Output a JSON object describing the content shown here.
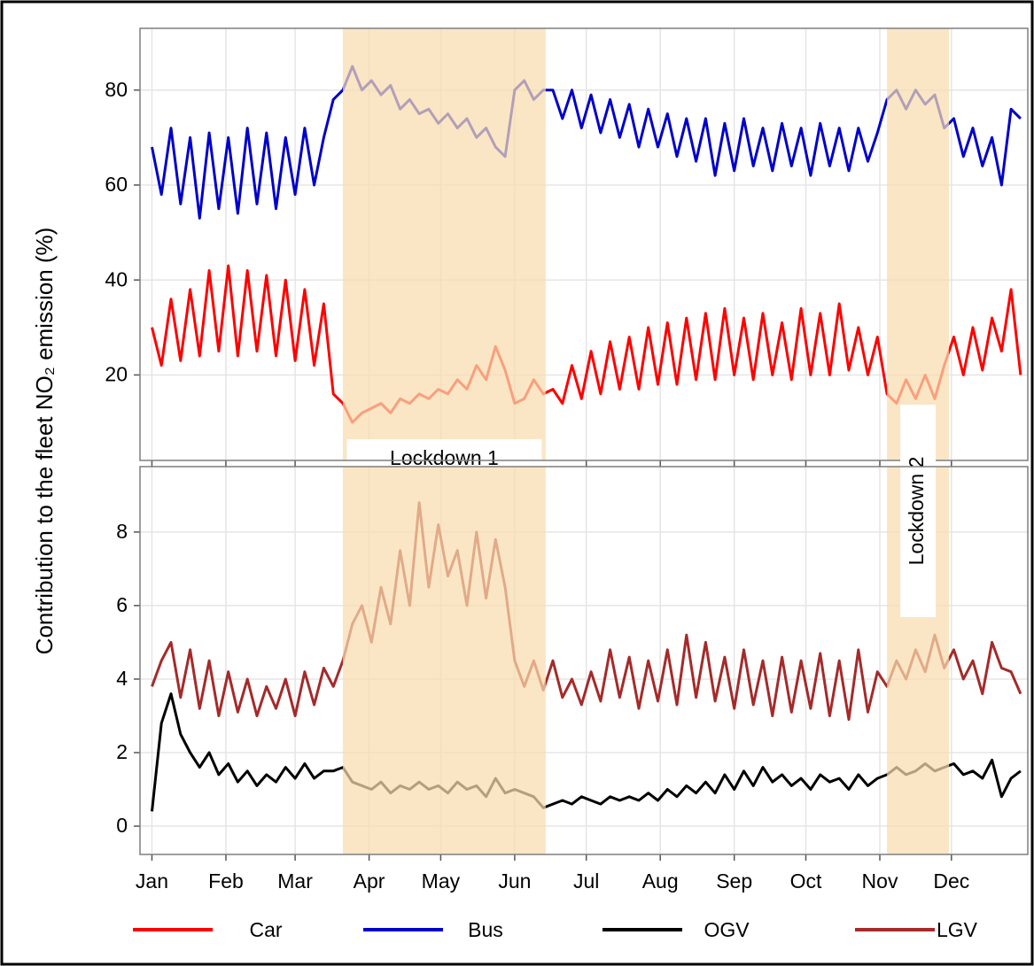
{
  "chart_data": [
    {
      "type": "line",
      "ylabel": "Contribution to the fleet NO₂ emission (%)",
      "x": [
        1,
        5,
        9,
        13,
        17,
        21,
        25,
        29,
        33,
        37,
        41,
        45,
        49,
        53,
        57,
        61,
        65,
        69,
        73,
        77,
        81,
        85,
        89,
        93,
        97,
        101,
        105,
        109,
        113,
        117,
        121,
        125,
        129,
        133,
        137,
        141,
        145,
        149,
        153,
        157,
        161,
        165,
        169,
        173,
        177,
        181,
        185,
        189,
        193,
        197,
        201,
        205,
        209,
        213,
        217,
        221,
        225,
        229,
        233,
        237,
        241,
        245,
        249,
        253,
        257,
        261,
        265,
        269,
        273,
        277,
        281,
        285,
        289,
        293,
        297,
        301,
        305,
        309,
        313,
        317,
        321,
        325,
        329,
        333,
        337,
        341,
        345,
        349,
        353,
        357,
        361,
        365
      ],
      "xlim": [
        -4,
        368
      ],
      "ylim": [
        2,
        93
      ],
      "yticks": [
        20,
        40,
        60,
        80
      ],
      "grid": true,
      "shaded": [
        {
          "x": [
            81,
            166
          ],
          "label": "Lockdown 1"
        },
        {
          "x": [
            309,
            335
          ]
        }
      ],
      "series": [
        {
          "name": "Car",
          "color": "#ff0000",
          "values": [
            30,
            22,
            36,
            23,
            38,
            24,
            42,
            25,
            43,
            24,
            42,
            25,
            41,
            24,
            40,
            23,
            38,
            22,
            35,
            16,
            14,
            10,
            12,
            13,
            14,
            12,
            15,
            14,
            16,
            15,
            17,
            16,
            19,
            17,
            22,
            19,
            26,
            21,
            14,
            15,
            19,
            16,
            17,
            14,
            22,
            15,
            25,
            16,
            27,
            17,
            28,
            17,
            30,
            18,
            31,
            18,
            32,
            19,
            33,
            19,
            34,
            20,
            32,
            19,
            33,
            20,
            31,
            19,
            34,
            20,
            33,
            20,
            35,
            21,
            30,
            20,
            28,
            16,
            14,
            19,
            15,
            20,
            15,
            22,
            28,
            20,
            30,
            21,
            32,
            25,
            38,
            20
          ]
        },
        {
          "name": "Bus",
          "color": "#0000cc",
          "values": [
            68,
            58,
            72,
            56,
            70,
            53,
            71,
            55,
            70,
            54,
            72,
            56,
            71,
            55,
            70,
            58,
            72,
            60,
            70,
            78,
            80,
            85,
            80,
            82,
            79,
            81,
            76,
            78,
            75,
            76,
            73,
            75,
            72,
            74,
            70,
            72,
            68,
            66,
            80,
            82,
            78,
            80,
            80,
            74,
            80,
            72,
            79,
            71,
            78,
            70,
            77,
            68,
            76,
            68,
            75,
            66,
            74,
            65,
            74,
            62,
            73,
            63,
            74,
            64,
            72,
            63,
            73,
            64,
            72,
            62,
            73,
            64,
            72,
            63,
            72,
            65,
            71,
            78,
            80,
            76,
            80,
            77,
            79,
            72,
            74,
            66,
            72,
            64,
            70,
            60,
            76,
            74
          ]
        }
      ]
    },
    {
      "type": "line",
      "x": [
        1,
        5,
        9,
        13,
        17,
        21,
        25,
        29,
        33,
        37,
        41,
        45,
        49,
        53,
        57,
        61,
        65,
        69,
        73,
        77,
        81,
        85,
        89,
        93,
        97,
        101,
        105,
        109,
        113,
        117,
        121,
        125,
        129,
        133,
        137,
        141,
        145,
        149,
        153,
        157,
        161,
        165,
        169,
        173,
        177,
        181,
        185,
        189,
        193,
        197,
        201,
        205,
        209,
        213,
        217,
        221,
        225,
        229,
        233,
        237,
        241,
        245,
        249,
        253,
        257,
        261,
        265,
        269,
        273,
        277,
        281,
        285,
        289,
        293,
        297,
        301,
        305,
        309,
        313,
        317,
        321,
        325,
        329,
        333,
        337,
        341,
        345,
        349,
        353,
        357,
        361,
        365
      ],
      "xlim": [
        -4,
        368
      ],
      "xticks": [
        {
          "value": 1,
          "label": "Jan"
        },
        {
          "value": 32,
          "label": "Feb"
        },
        {
          "value": 61,
          "label": "Mar"
        },
        {
          "value": 92,
          "label": "Apr"
        },
        {
          "value": 122,
          "label": "May"
        },
        {
          "value": 153,
          "label": "Jun"
        },
        {
          "value": 183,
          "label": "Jul"
        },
        {
          "value": 214,
          "label": "Aug"
        },
        {
          "value": 245,
          "label": "Sep"
        },
        {
          "value": 275,
          "label": "Oct"
        },
        {
          "value": 306,
          "label": "Nov"
        },
        {
          "value": 336,
          "label": "Dec"
        }
      ],
      "ylim": [
        -0.77,
        9.78
      ],
      "yticks": [
        0,
        2,
        4,
        6,
        8
      ],
      "grid": true,
      "shaded": [
        {
          "x": [
            81,
            166
          ]
        },
        {
          "x": [
            309,
            335
          ],
          "label": "Lockdown 2"
        }
      ],
      "series": [
        {
          "name": "OGV",
          "color": "#000000",
          "values": [
            0.4,
            2.8,
            3.6,
            2.5,
            2.0,
            1.6,
            2.0,
            1.4,
            1.7,
            1.2,
            1.5,
            1.1,
            1.4,
            1.2,
            1.6,
            1.3,
            1.7,
            1.3,
            1.5,
            1.5,
            1.6,
            1.2,
            1.1,
            1.0,
            1.2,
            0.9,
            1.1,
            1.0,
            1.2,
            1.0,
            1.1,
            0.9,
            1.2,
            1.0,
            1.1,
            0.8,
            1.3,
            0.9,
            1.0,
            0.9,
            0.8,
            0.5,
            0.6,
            0.7,
            0.6,
            0.8,
            0.7,
            0.6,
            0.8,
            0.7,
            0.8,
            0.7,
            0.9,
            0.7,
            1.0,
            0.8,
            1.1,
            0.9,
            1.2,
            0.9,
            1.4,
            1.0,
            1.5,
            1.1,
            1.6,
            1.2,
            1.4,
            1.1,
            1.3,
            1.0,
            1.4,
            1.2,
            1.3,
            1.0,
            1.4,
            1.1,
            1.3,
            1.4,
            1.6,
            1.4,
            1.5,
            1.7,
            1.5,
            1.6,
            1.7,
            1.4,
            1.5,
            1.3,
            1.8,
            0.8,
            1.3,
            1.5
          ]
        },
        {
          "name": "LGV",
          "color": "#a52a2a",
          "values": [
            3.8,
            4.5,
            5.0,
            3.5,
            4.8,
            3.2,
            4.5,
            3.0,
            4.2,
            3.1,
            4.0,
            3.0,
            3.8,
            3.2,
            4.0,
            3.0,
            4.2,
            3.3,
            4.3,
            3.8,
            4.5,
            5.5,
            6.0,
            5.0,
            6.5,
            5.5,
            7.5,
            6.0,
            8.8,
            6.5,
            8.2,
            6.8,
            7.5,
            6.0,
            8.0,
            6.2,
            7.8,
            6.5,
            4.5,
            3.8,
            4.5,
            3.7,
            4.5,
            3.5,
            4.0,
            3.3,
            4.2,
            3.4,
            4.8,
            3.5,
            4.6,
            3.2,
            4.5,
            3.4,
            4.8,
            3.3,
            5.2,
            3.5,
            5.0,
            3.4,
            4.6,
            3.2,
            4.8,
            3.3,
            4.5,
            3.0,
            4.6,
            3.1,
            4.5,
            3.2,
            4.7,
            3.0,
            4.5,
            2.9,
            4.8,
            3.1,
            4.2,
            3.8,
            4.5,
            4.0,
            4.8,
            4.2,
            5.2,
            4.3,
            4.8,
            4.0,
            4.5,
            3.6,
            5.0,
            4.3,
            4.2,
            3.6
          ]
        }
      ]
    }
  ]
}
